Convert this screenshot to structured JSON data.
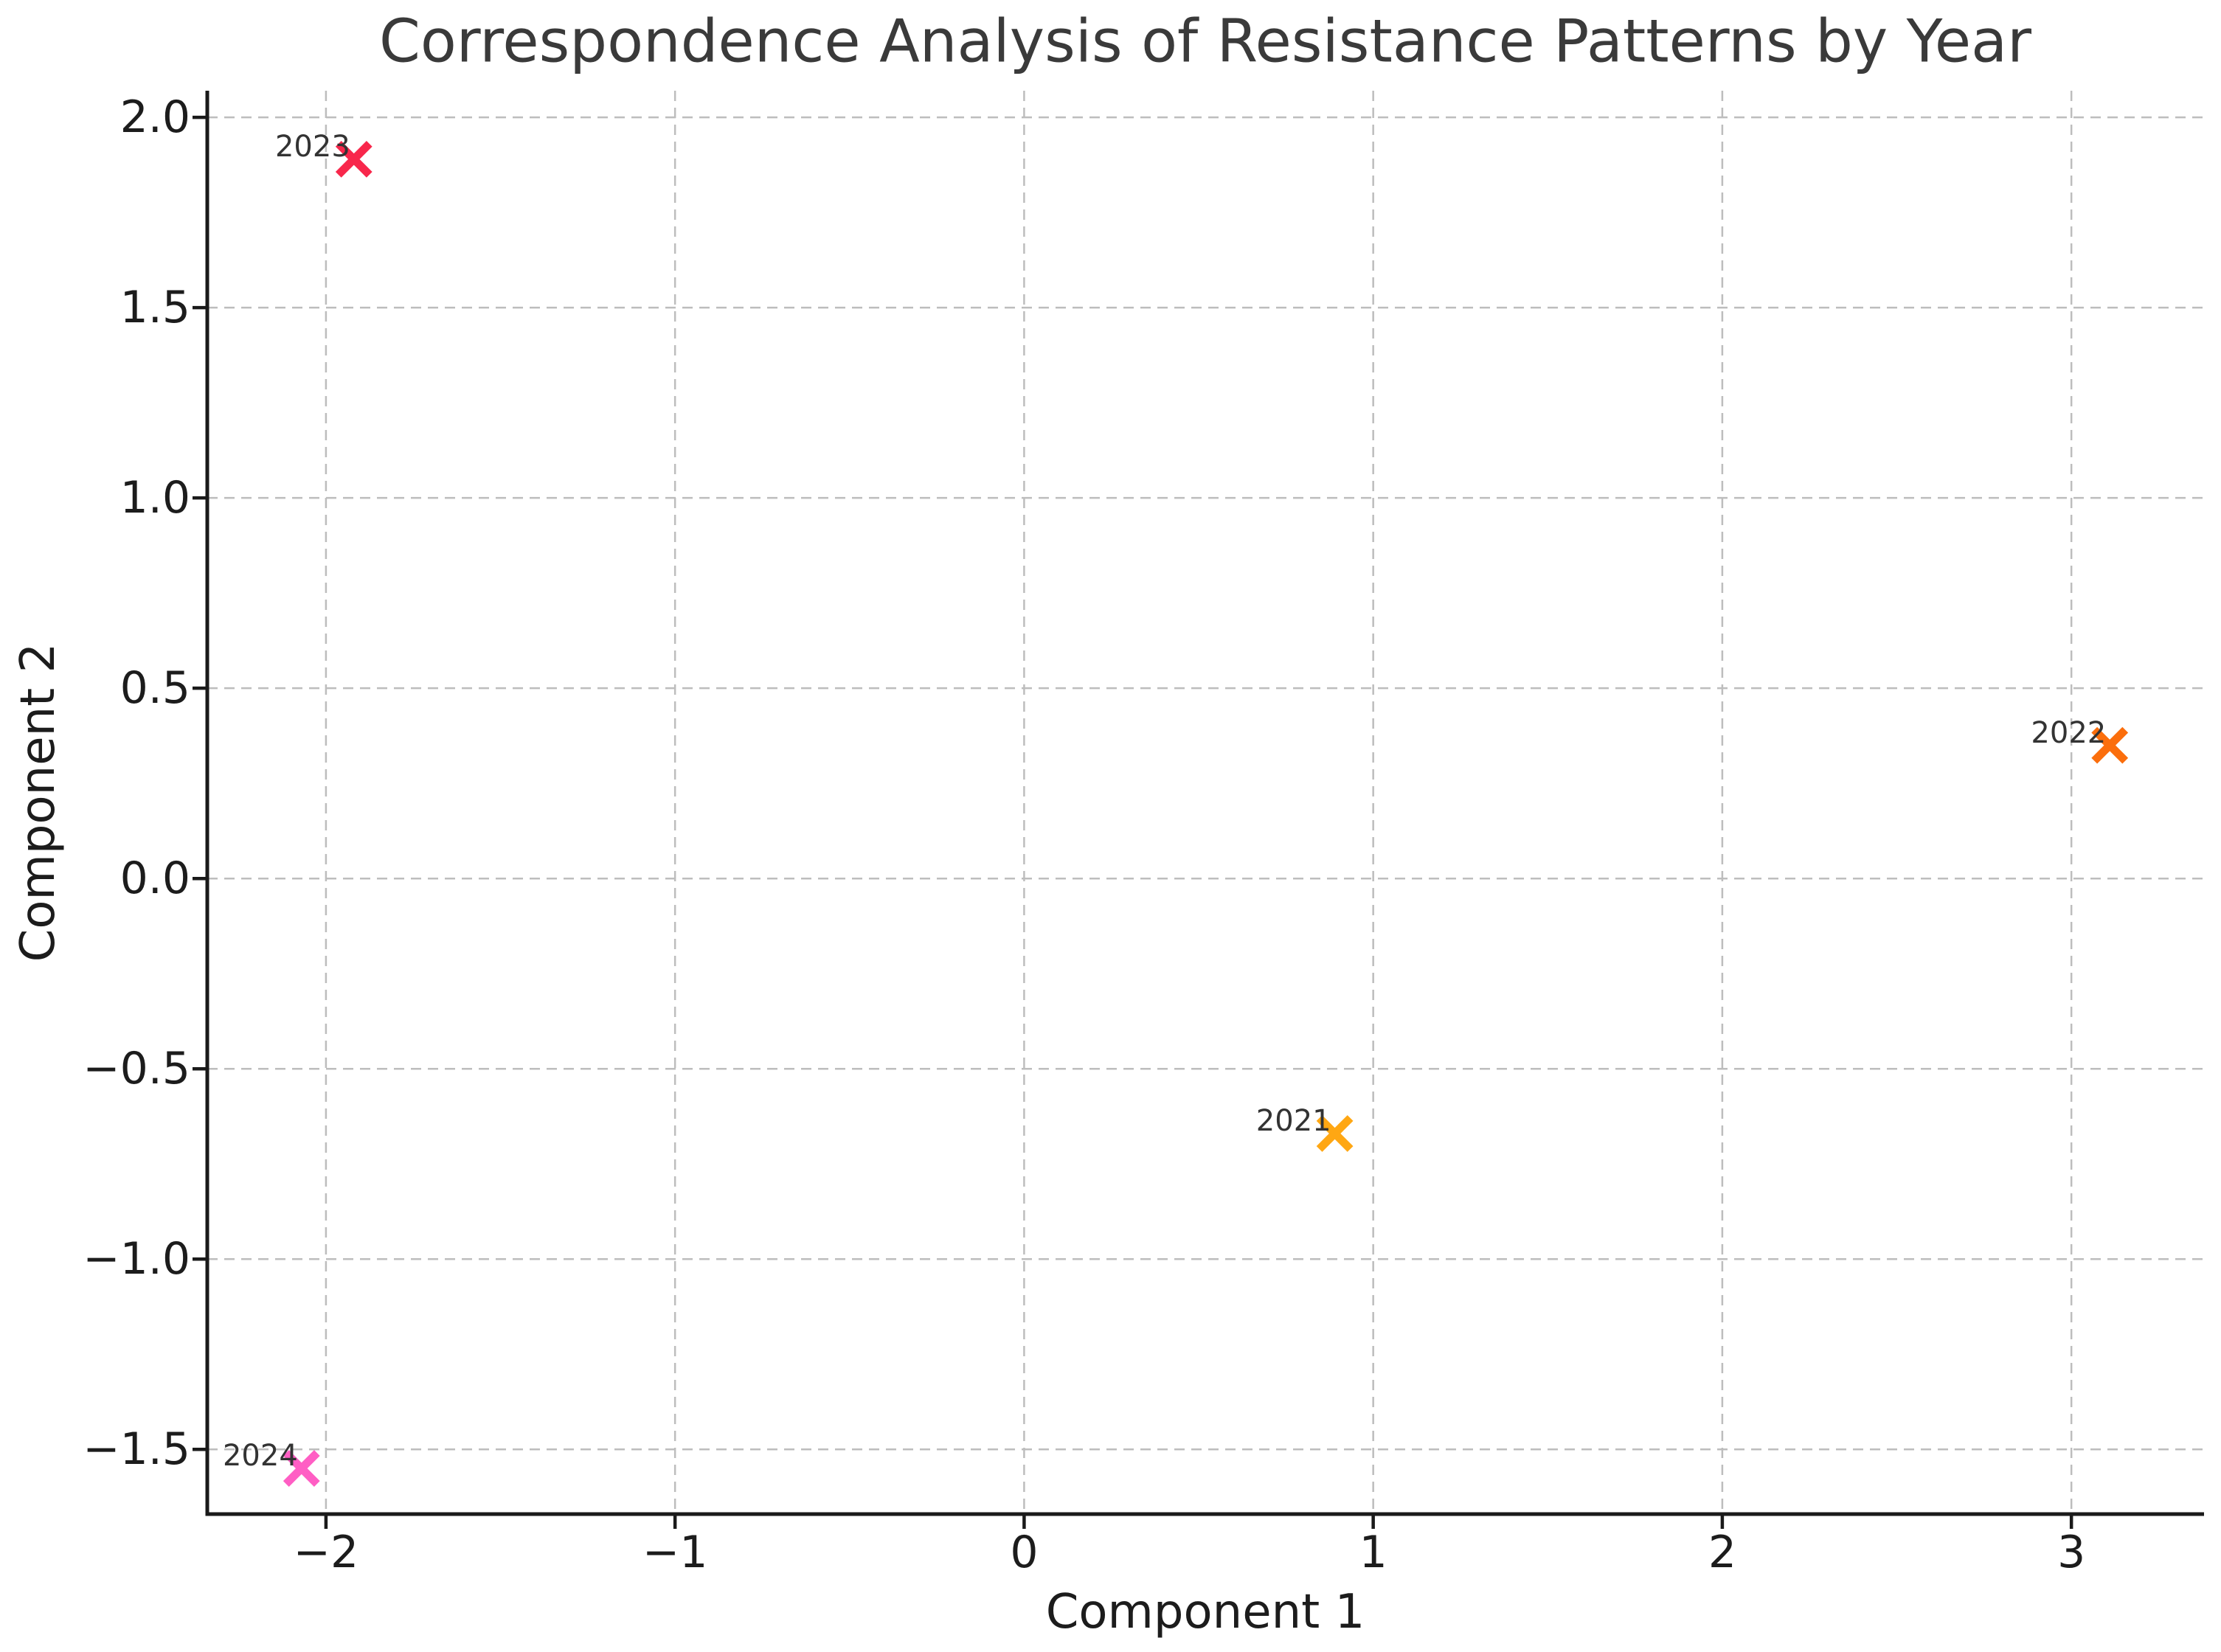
{
  "chart_data": {
    "type": "scatter",
    "title": "Correspondence Analysis of Resistance Patterns by Year",
    "xlabel": "Component 1",
    "ylabel": "Component 2",
    "xlim": [
      -2.34,
      3.38
    ],
    "ylim": [
      -1.67,
      2.07
    ],
    "xticks": [
      -2,
      -1,
      0,
      1,
      2,
      3
    ],
    "yticks": [
      2.0,
      1.5,
      1.0,
      0.5,
      0.0,
      -0.5,
      -1.0,
      -1.5
    ],
    "grid": true,
    "grid_style": "dashed",
    "legend": "none",
    "marker": "x",
    "points": [
      {
        "label": "2021",
        "x": 0.89,
        "y": -0.67,
        "color": "#FFA713"
      },
      {
        "label": "2022",
        "x": 3.11,
        "y": 0.35,
        "color": "#FB6E0C"
      },
      {
        "label": "2023",
        "x": -1.92,
        "y": 1.89,
        "color": "#F8274B"
      },
      {
        "label": "2024",
        "x": -2.07,
        "y": -1.55,
        "color": "#FF5EC4"
      }
    ]
  },
  "colors": {
    "background": "#ffffff",
    "grid": "#bdbdbd",
    "spine": "#1a1a1a",
    "title_text": "#3a3a3a",
    "tick_text": "#1c1c1c",
    "annotation_text": "#333333"
  }
}
